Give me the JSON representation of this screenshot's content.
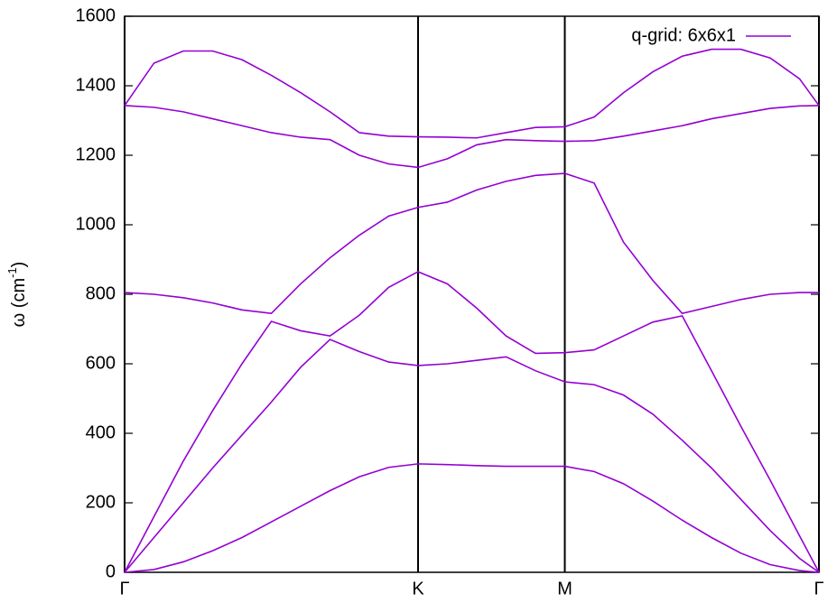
{
  "chart_data": {
    "type": "line",
    "ylabel": "ω (cm",
    "ylabel_sup": "-1",
    "ylabel_end": ")",
    "x": [
      0,
      0.1,
      0.2,
      0.3,
      0.4,
      0.5,
      0.6,
      0.7,
      0.8,
      0.9,
      1.0,
      1.1,
      1.2,
      1.3,
      1.4,
      1.5,
      1.6,
      1.7,
      1.8,
      1.9,
      2.0,
      2.1,
      2.2,
      2.3,
      2.366
    ],
    "xlim": [
      0,
      2.366
    ],
    "xticks": [
      {
        "value": 0,
        "label": "Γ"
      },
      {
        "value": 1.0,
        "label": "K"
      },
      {
        "value": 1.5,
        "label": "M"
      },
      {
        "value": 2.366,
        "label": "Γ"
      }
    ],
    "ylim": [
      0,
      1600
    ],
    "yticks": [
      0,
      200,
      400,
      600,
      800,
      1000,
      1200,
      1400,
      1600
    ],
    "xgrid": true,
    "legend": "top-right",
    "series": [
      {
        "name": "q-grid: 6x6x1",
        "color": "#9400d3",
        "values": [
          0,
          8,
          30,
          62,
          100,
          145,
          190,
          235,
          275,
          302,
          312,
          310,
          307,
          305,
          305,
          305,
          290,
          255,
          205,
          150,
          100,
          55,
          22,
          5,
          0
        ]
      },
      {
        "color": "#9400d3",
        "values": [
          0,
          100,
          200,
          300,
          395,
          490,
          590,
          670,
          635,
          605,
          595,
          600,
          610,
          620,
          580,
          548,
          540,
          510,
          455,
          380,
          300,
          210,
          120,
          40,
          0
        ]
      },
      {
        "color": "#9400d3",
        "values": [
          0,
          160,
          320,
          465,
          600,
          722,
          695,
          680,
          740,
          820,
          865,
          830,
          760,
          680,
          630,
          632,
          640,
          680,
          720,
          738,
          580,
          420,
          265,
          105,
          0
        ]
      },
      {
        "color": "#9400d3",
        "values": [
          805,
          800,
          790,
          775,
          755,
          745,
          830,
          905,
          970,
          1025,
          1050,
          1065,
          1100,
          1125,
          1142,
          1148,
          1120,
          950,
          840,
          745,
          765,
          785,
          800,
          805,
          805
        ]
      },
      {
        "color": "#9400d3",
        "values": [
          1343,
          1338,
          1325,
          1305,
          1285,
          1265,
          1252,
          1245,
          1200,
          1175,
          1165,
          1190,
          1230,
          1245,
          1242,
          1240,
          1242,
          1255,
          1270,
          1285,
          1305,
          1320,
          1335,
          1342,
          1343
        ]
      },
      {
        "color": "#9400d3",
        "values": [
          1343,
          1465,
          1500,
          1500,
          1475,
          1430,
          1380,
          1325,
          1265,
          1255,
          1253,
          1252,
          1250,
          1265,
          1280,
          1282,
          1310,
          1380,
          1440,
          1485,
          1505,
          1505,
          1480,
          1420,
          1343
        ]
      }
    ]
  }
}
